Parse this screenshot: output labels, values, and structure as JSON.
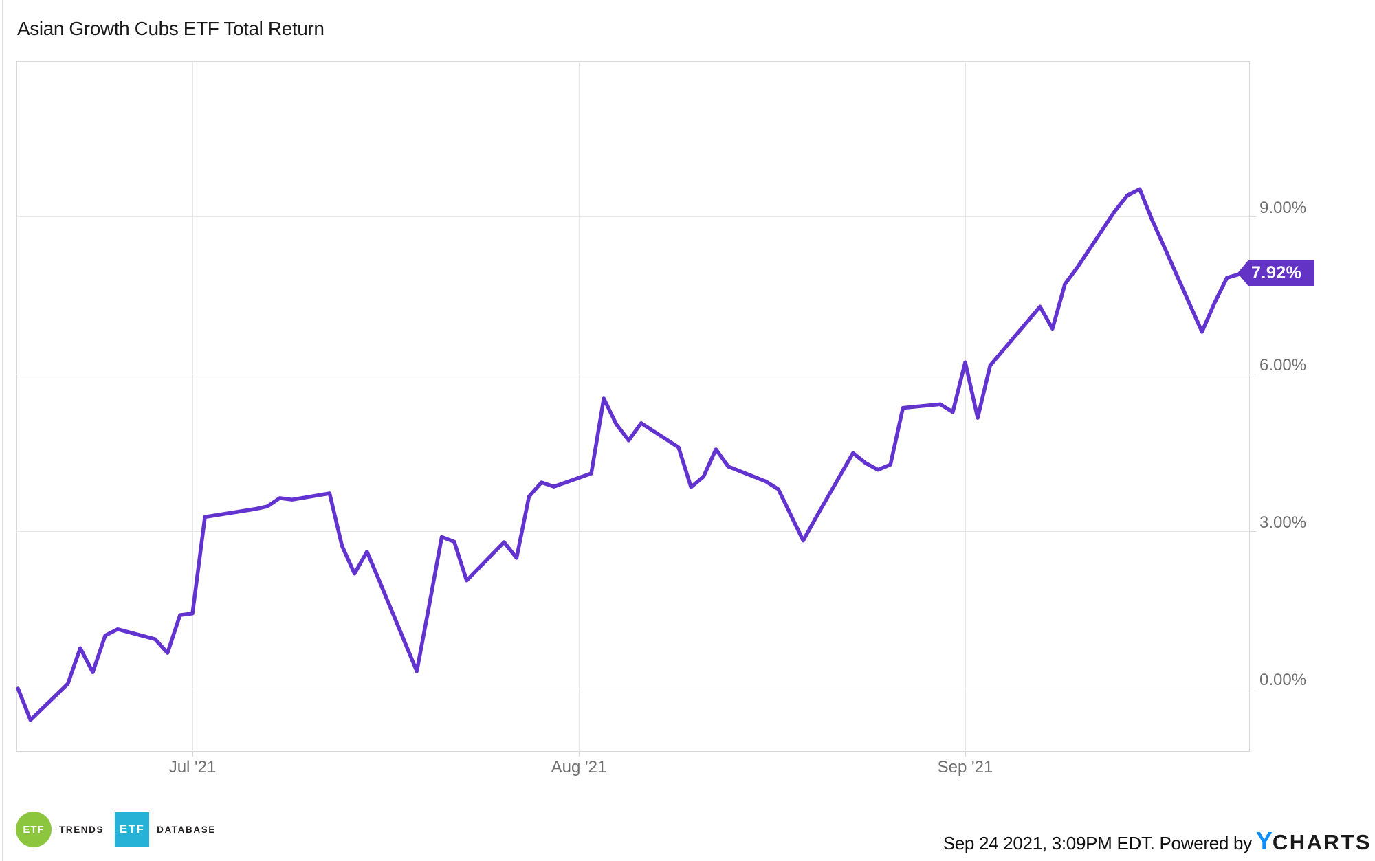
{
  "title": "Asian Growth Cubs ETF Total Return",
  "colors": {
    "line": "#6333cf",
    "badge_background": "#6233c4",
    "gridline": "#e7e7e7",
    "plot_border": "#d8d8d8",
    "axis_label": "#6e6e6e",
    "etf_trends_green": "#8cc63f",
    "etf_database_cyan": "#25b2d6",
    "ycharts_y_blue": "#0b8fff"
  },
  "chart_data": {
    "type": "line",
    "title": "Asian Growth Cubs ETF Total Return",
    "grid": true,
    "legend_position": "none",
    "ylim": [
      -1.2,
      12.0
    ],
    "y_axis_side": "right",
    "y_ticks": [
      {
        "value": 9,
        "label": "9.00%"
      },
      {
        "value": 6,
        "label": "6.00%"
      },
      {
        "value": 3,
        "label": "3.00%"
      },
      {
        "value": 0,
        "label": "0.00%"
      }
    ],
    "x_ticks": [
      {
        "date": "2021-07-01",
        "label": "Jul '21"
      },
      {
        "date": "2021-08-01",
        "label": "Aug '21"
      },
      {
        "date": "2021-09-01",
        "label": "Sep '21"
      }
    ],
    "end_label": "7.92%",
    "series": [
      {
        "name": "Asian Growth Cubs ETF Total Return",
        "unit": "percent",
        "points": [
          {
            "date": "2021-06-17",
            "value": 0.0
          },
          {
            "date": "2021-06-18",
            "value": -0.6
          },
          {
            "date": "2021-06-21",
            "value": 0.09
          },
          {
            "date": "2021-06-22",
            "value": 0.77
          },
          {
            "date": "2021-06-23",
            "value": 0.31
          },
          {
            "date": "2021-06-24",
            "value": 1.01
          },
          {
            "date": "2021-06-25",
            "value": 1.13
          },
          {
            "date": "2021-06-28",
            "value": 0.94
          },
          {
            "date": "2021-06-29",
            "value": 0.68
          },
          {
            "date": "2021-06-30",
            "value": 1.4
          },
          {
            "date": "2021-07-01",
            "value": 1.43
          },
          {
            "date": "2021-07-02",
            "value": 3.27
          },
          {
            "date": "2021-07-06",
            "value": 3.42
          },
          {
            "date": "2021-07-07",
            "value": 3.47
          },
          {
            "date": "2021-07-08",
            "value": 3.63
          },
          {
            "date": "2021-07-09",
            "value": 3.6
          },
          {
            "date": "2021-07-12",
            "value": 3.72
          },
          {
            "date": "2021-07-13",
            "value": 2.72
          },
          {
            "date": "2021-07-14",
            "value": 2.19
          },
          {
            "date": "2021-07-15",
            "value": 2.61
          },
          {
            "date": "2021-07-16",
            "value": 2.05
          },
          {
            "date": "2021-07-19",
            "value": 0.33
          },
          {
            "date": "2021-07-20",
            "value": 1.6
          },
          {
            "date": "2021-07-21",
            "value": 2.89
          },
          {
            "date": "2021-07-22",
            "value": 2.8
          },
          {
            "date": "2021-07-23",
            "value": 2.06
          },
          {
            "date": "2021-07-26",
            "value": 2.79
          },
          {
            "date": "2021-07-27",
            "value": 2.49
          },
          {
            "date": "2021-07-28",
            "value": 3.66
          },
          {
            "date": "2021-07-29",
            "value": 3.93
          },
          {
            "date": "2021-07-30",
            "value": 3.85
          },
          {
            "date": "2021-08-02",
            "value": 4.1
          },
          {
            "date": "2021-08-03",
            "value": 5.53
          },
          {
            "date": "2021-08-04",
            "value": 5.04
          },
          {
            "date": "2021-08-05",
            "value": 4.73
          },
          {
            "date": "2021-08-06",
            "value": 5.06
          },
          {
            "date": "2021-08-09",
            "value": 4.6
          },
          {
            "date": "2021-08-10",
            "value": 3.84
          },
          {
            "date": "2021-08-11",
            "value": 4.04
          },
          {
            "date": "2021-08-12",
            "value": 4.56
          },
          {
            "date": "2021-08-13",
            "value": 4.23
          },
          {
            "date": "2021-08-16",
            "value": 3.95
          },
          {
            "date": "2021-08-17",
            "value": 3.8
          },
          {
            "date": "2021-08-18",
            "value": 3.31
          },
          {
            "date": "2021-08-19",
            "value": 2.82
          },
          {
            "date": "2021-08-20",
            "value": 3.25
          },
          {
            "date": "2021-08-23",
            "value": 4.49
          },
          {
            "date": "2021-08-24",
            "value": 4.3
          },
          {
            "date": "2021-08-25",
            "value": 4.17
          },
          {
            "date": "2021-08-26",
            "value": 4.27
          },
          {
            "date": "2021-08-27",
            "value": 5.35
          },
          {
            "date": "2021-08-30",
            "value": 5.42
          },
          {
            "date": "2021-08-31",
            "value": 5.27
          },
          {
            "date": "2021-09-01",
            "value": 6.22
          },
          {
            "date": "2021-09-02",
            "value": 5.16
          },
          {
            "date": "2021-09-03",
            "value": 6.16
          },
          {
            "date": "2021-09-07",
            "value": 7.28
          },
          {
            "date": "2021-09-08",
            "value": 6.86
          },
          {
            "date": "2021-09-09",
            "value": 7.71
          },
          {
            "date": "2021-09-10",
            "value": 8.03
          },
          {
            "date": "2021-09-13",
            "value": 9.1
          },
          {
            "date": "2021-09-14",
            "value": 9.4
          },
          {
            "date": "2021-09-15",
            "value": 9.52
          },
          {
            "date": "2021-09-16",
            "value": 8.93
          },
          {
            "date": "2021-09-17",
            "value": 8.4
          },
          {
            "date": "2021-09-20",
            "value": 6.8
          },
          {
            "date": "2021-09-21",
            "value": 7.35
          },
          {
            "date": "2021-09-22",
            "value": 7.83
          },
          {
            "date": "2021-09-23",
            "value": 7.9
          },
          {
            "date": "2021-09-24",
            "value": 7.92
          }
        ]
      }
    ]
  },
  "badge": {
    "label": "7.92%"
  },
  "footer": {
    "etf_trends": {
      "icon_text": "ETF",
      "word": "TRENDS"
    },
    "etf_database": {
      "icon_text": "ETF",
      "word": "DATABASE"
    },
    "attribution": "Sep 24 2021, 3:09PM EDT. Powered by",
    "ycharts_y": "Y",
    "ycharts_rest": "CHARTS"
  }
}
